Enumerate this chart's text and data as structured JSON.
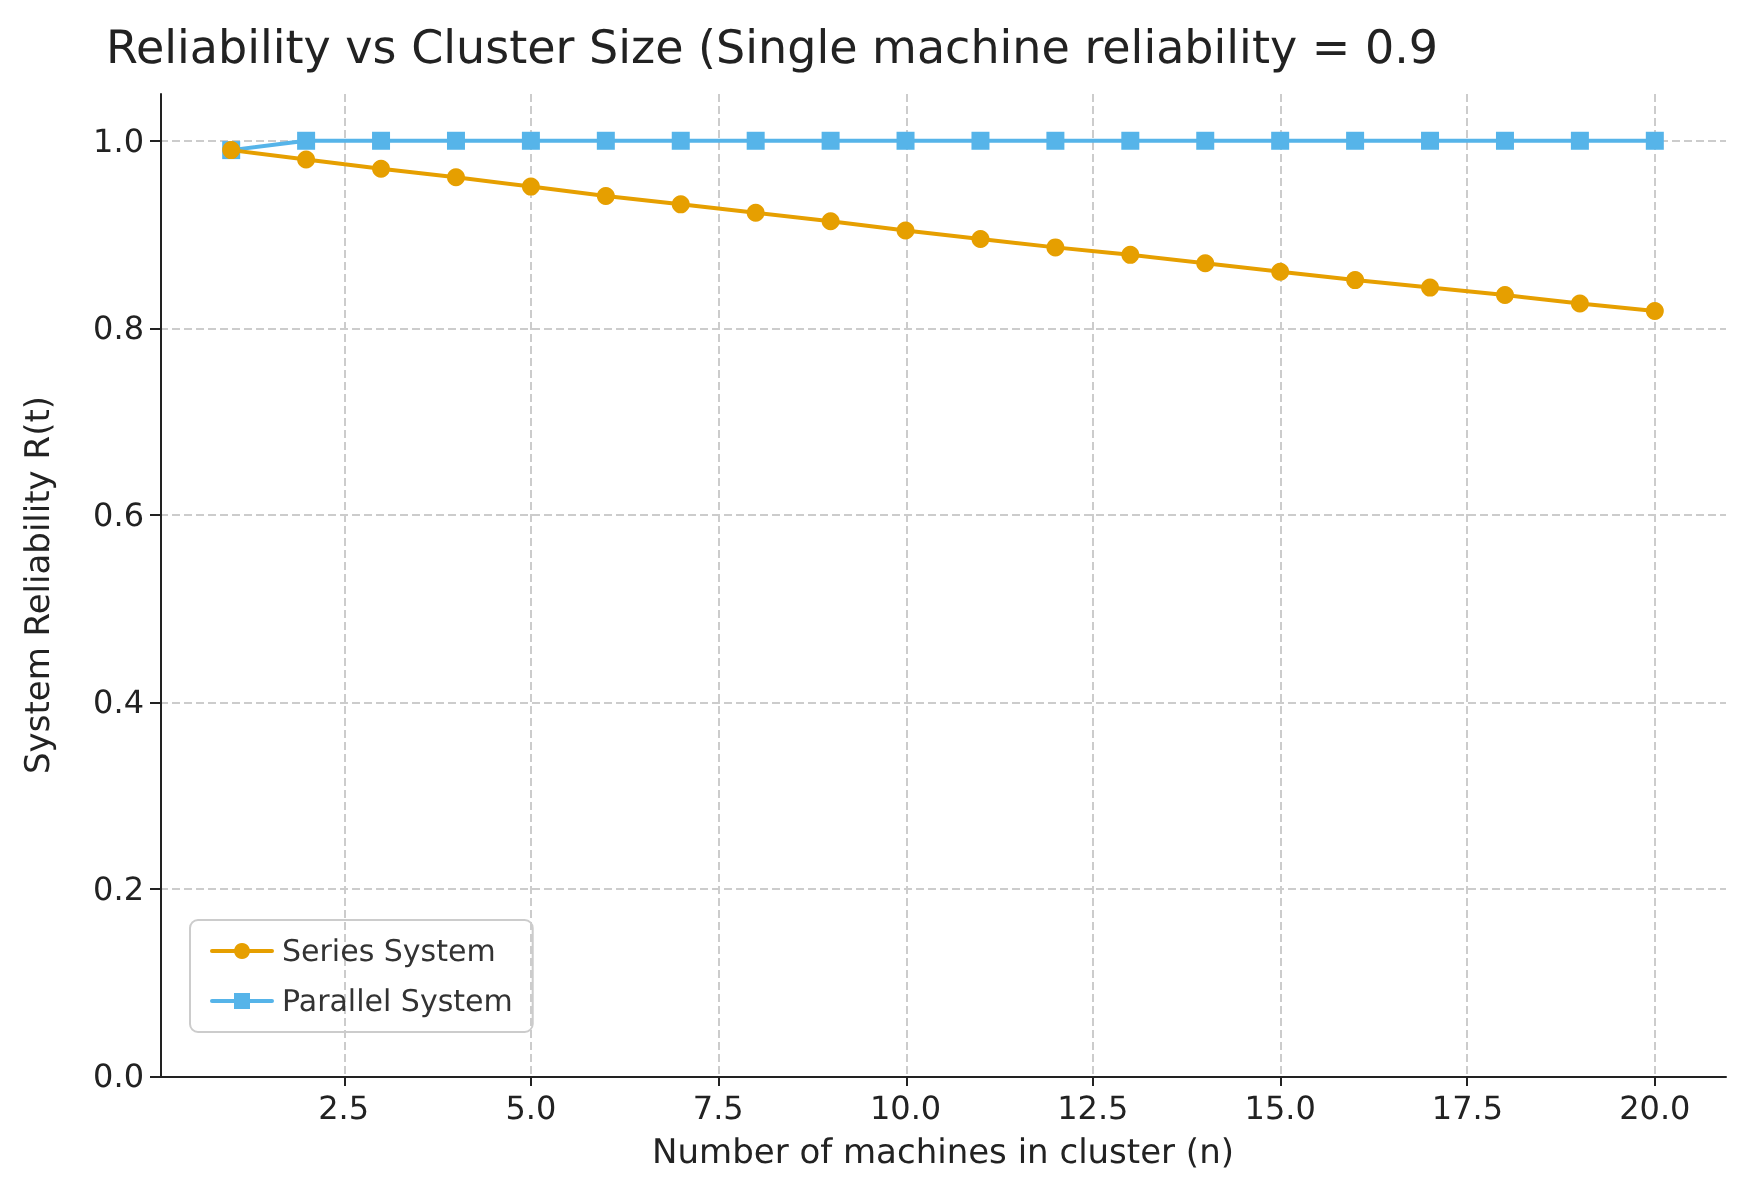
{
  "chart_data": {
    "type": "line",
    "title": "Reliability vs Cluster Size (Single machine reliability = 0.9",
    "xlabel": "Number of machines in cluster (n)",
    "ylabel": "System Reliability R(t)",
    "x": [
      1,
      2,
      3,
      4,
      5,
      6,
      7,
      8,
      9,
      10,
      11,
      12,
      13,
      14,
      15,
      16,
      17,
      18,
      19,
      20
    ],
    "series": [
      {
        "name": "Series System",
        "color": "#e69f00",
        "marker": "circle",
        "values": [
          0.99,
          0.98,
          0.97,
          0.961,
          0.951,
          0.941,
          0.932,
          0.923,
          0.914,
          0.904,
          0.895,
          0.886,
          0.878,
          0.869,
          0.86,
          0.851,
          0.843,
          0.835,
          0.826,
          0.818
        ]
      },
      {
        "name": "Parallel System",
        "color": "#56b4e9",
        "marker": "square",
        "values": [
          0.99,
          1,
          1,
          1,
          1,
          1,
          1,
          1,
          1,
          1,
          1,
          1,
          1,
          1,
          1,
          1,
          1,
          1,
          1,
          1
        ]
      }
    ],
    "xlim": [
      0.05,
      20.95
    ],
    "ylim": [
      0,
      1.05
    ],
    "xticks": [
      {
        "value": 2.5,
        "label": "2.5"
      },
      {
        "value": 5,
        "label": "5.0"
      },
      {
        "value": 7.5,
        "label": "7.5"
      },
      {
        "value": 10,
        "label": "10.0"
      },
      {
        "value": 12.5,
        "label": "12.5"
      },
      {
        "value": 15,
        "label": "15.0"
      },
      {
        "value": 17.5,
        "label": "17.5"
      },
      {
        "value": 20,
        "label": "20.0"
      }
    ],
    "yticks": [
      {
        "value": 0,
        "label": "0.0"
      },
      {
        "value": 0.2,
        "label": "0.2"
      },
      {
        "value": 0.4,
        "label": "0.4"
      },
      {
        "value": 0.6,
        "label": "0.6"
      },
      {
        "value": 0.8,
        "label": "0.8"
      },
      {
        "value": 1,
        "label": "1.0"
      }
    ],
    "grid": true,
    "legend": "bottom left",
    "line_style": "solid"
  }
}
